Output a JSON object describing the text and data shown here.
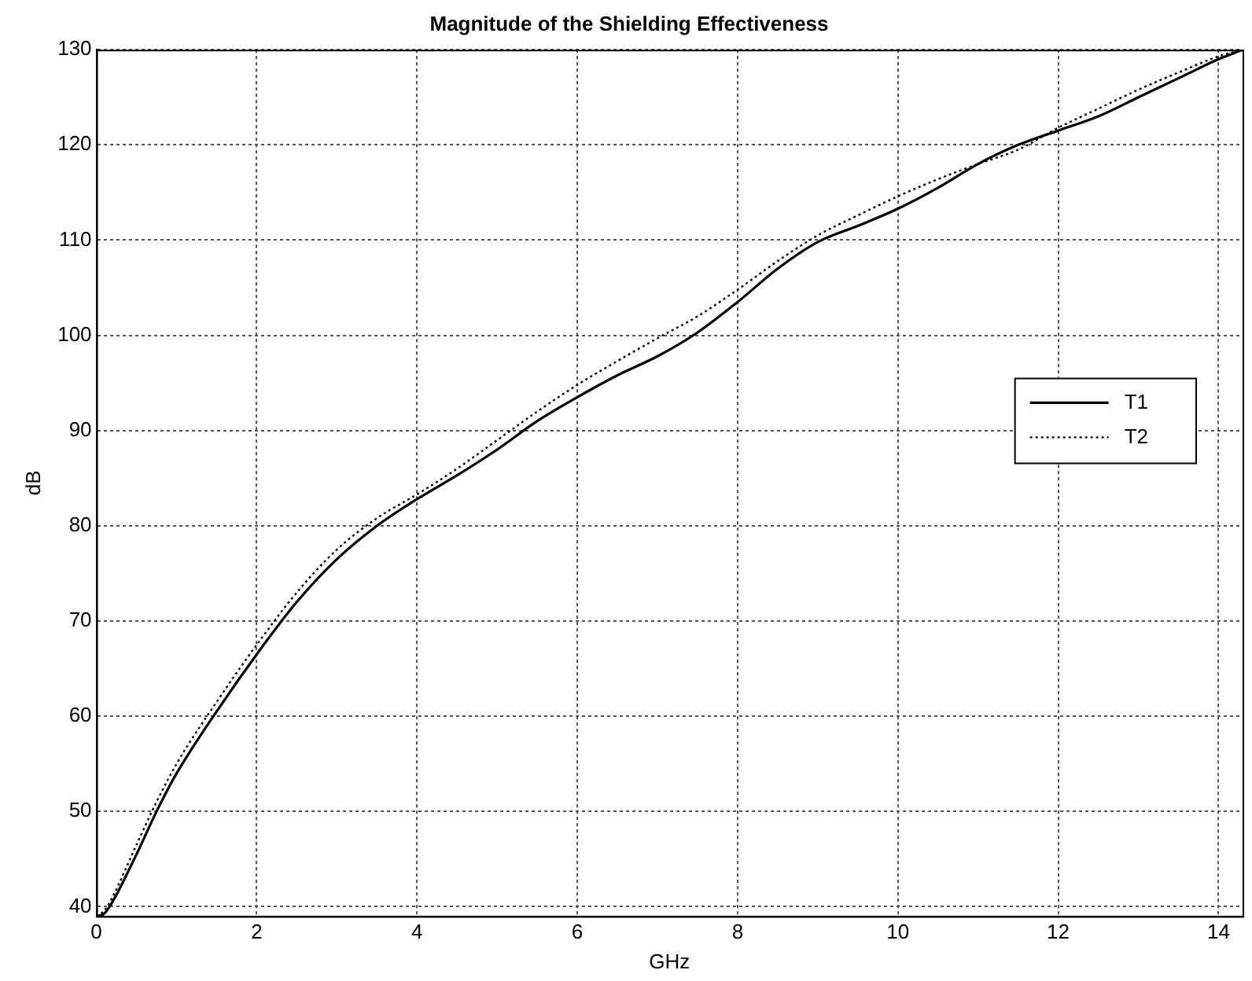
{
  "chart_data": {
    "type": "line",
    "title": "Magnitude of the Shielding Effectiveness",
    "xlabel": "GHz",
    "ylabel": "dB",
    "x": [
      0,
      0.1,
      0.2,
      0.5,
      0.75,
      1,
      1.5,
      2,
      2.5,
      3,
      3.5,
      4,
      4.5,
      5,
      5.5,
      6,
      6.5,
      7,
      7.5,
      8,
      8.5,
      9,
      9.5,
      10,
      10.5,
      11,
      11.5,
      12,
      12.5,
      13,
      13.5,
      14,
      14.3
    ],
    "series": [
      {
        "name": "T1",
        "color": "#000000",
        "line_style": "solid",
        "values": [
          39,
          39.3,
          40.5,
          45.5,
          50,
          54,
          60.5,
          66.5,
          72,
          76.5,
          80,
          82.8,
          85.3,
          88,
          91,
          93.5,
          95.8,
          97.8,
          100.3,
          103.5,
          107,
          109.8,
          111.5,
          113.3,
          115.5,
          118,
          120,
          121.5,
          123,
          125,
          127,
          129,
          130
        ]
      },
      {
        "name": "T2",
        "color": "#000000",
        "line_style": "dotted",
        "values": [
          39,
          39.6,
          41,
          46.5,
          51,
          55,
          61.5,
          67.5,
          73,
          77.5,
          80.8,
          83.3,
          86,
          89,
          92,
          94.8,
          97.3,
          99.7,
          102,
          104.8,
          107.8,
          110.5,
          112.6,
          114.6,
          116.4,
          118,
          119.5,
          121.8,
          123.8,
          125.8,
          127.6,
          129.3,
          130
        ]
      }
    ],
    "xlim": [
      0,
      14.3
    ],
    "xticks": [
      0,
      2,
      4,
      6,
      8,
      10,
      12,
      14
    ],
    "ylim": [
      39,
      130
    ],
    "yticks": [
      40,
      50,
      60,
      70,
      80,
      90,
      100,
      110,
      120,
      130
    ],
    "grid": true,
    "legend": "right",
    "marker": "none"
  }
}
